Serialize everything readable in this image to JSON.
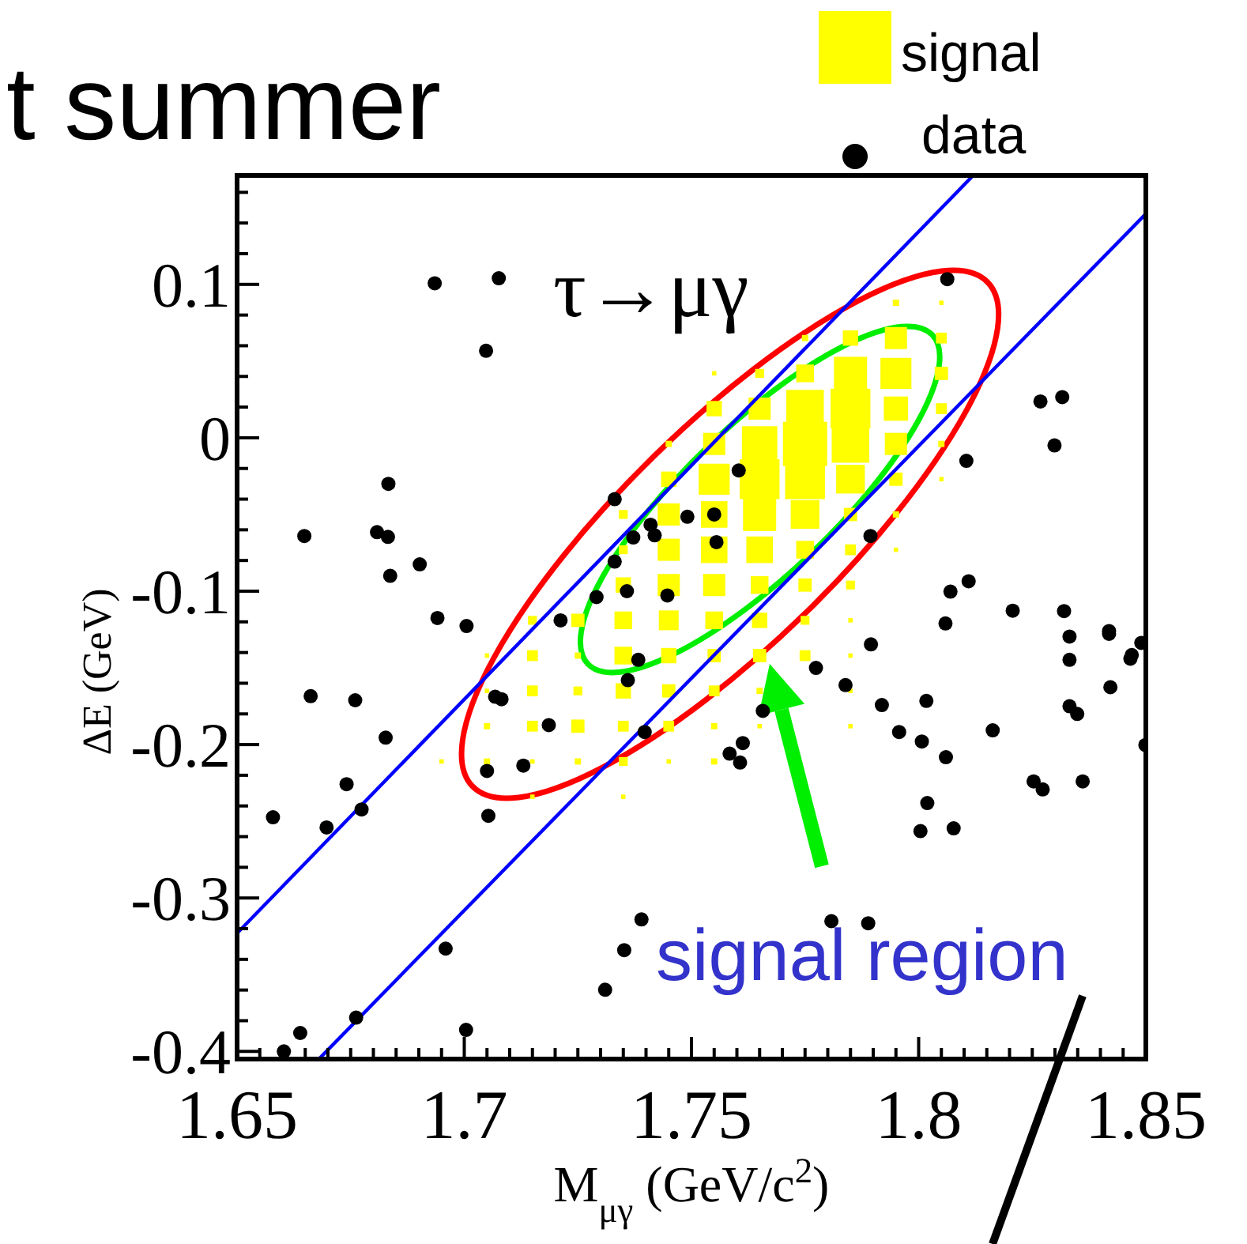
{
  "chart_data": {
    "type": "scatter",
    "title": "t summer",
    "xlabel": "M$_{μγ}$ (GeV/c$^{2}$)",
    "ylabel": "ΔE (GeV)",
    "annotations": [
      "τ→μγ",
      "signal region"
    ],
    "xlim": [
      1.65,
      1.85
    ],
    "ylim": [
      -0.405,
      0.171
    ],
    "xticks": [
      1.65,
      {
        "value": 1.655,
        "label": null
      },
      {
        "value": 1.66,
        "label": null
      },
      {
        "value": 1.665,
        "label": null
      },
      {
        "value": 1.67,
        "label": null
      },
      {
        "value": 1.675,
        "label": null
      },
      {
        "value": 1.68,
        "label": null
      },
      {
        "value": 1.685,
        "label": null
      },
      {
        "value": 1.69,
        "label": null
      },
      {
        "value": 1.695,
        "label": null
      },
      1.7,
      {
        "value": 1.705,
        "label": null
      },
      {
        "value": 1.71,
        "label": null
      },
      {
        "value": 1.715,
        "label": null
      },
      {
        "value": 1.72,
        "label": null
      },
      {
        "value": 1.725,
        "label": null
      },
      {
        "value": 1.73,
        "label": null
      },
      {
        "value": 1.735,
        "label": null
      },
      {
        "value": 1.74,
        "label": null
      },
      {
        "value": 1.745,
        "label": null
      },
      1.75,
      {
        "value": 1.755,
        "label": null
      },
      {
        "value": 1.76,
        "label": null
      },
      {
        "value": 1.765,
        "label": null
      },
      {
        "value": 1.77,
        "label": null
      },
      {
        "value": 1.775,
        "label": null
      },
      {
        "value": 1.78,
        "label": null
      },
      {
        "value": 1.785,
        "label": null
      },
      {
        "value": 1.79,
        "label": null
      },
      {
        "value": 1.795,
        "label": null
      },
      1.8,
      {
        "value": 1.805,
        "label": null
      },
      {
        "value": 1.81,
        "label": null
      },
      {
        "value": 1.815,
        "label": null
      },
      {
        "value": 1.82,
        "label": null
      },
      {
        "value": 1.825,
        "label": null
      },
      {
        "value": 1.83,
        "label": null
      },
      {
        "value": 1.835,
        "label": null
      },
      {
        "value": 1.84,
        "label": null
      },
      {
        "value": 1.845,
        "label": null
      },
      1.85
    ],
    "yticks": [
      -0.4,
      {
        "value": -0.38,
        "label": null
      },
      {
        "value": -0.36,
        "label": null
      },
      {
        "value": -0.34,
        "label": null
      },
      {
        "value": -0.32,
        "label": null
      },
      -0.3,
      {
        "value": -0.28,
        "label": null
      },
      {
        "value": -0.26,
        "label": null
      },
      {
        "value": -0.24,
        "label": null
      },
      {
        "value": -0.22,
        "label": null
      },
      -0.2,
      {
        "value": -0.18,
        "label": null
      },
      {
        "value": -0.16,
        "label": null
      },
      {
        "value": -0.14,
        "label": null
      },
      {
        "value": -0.12,
        "label": null
      },
      -0.1,
      {
        "value": -0.08,
        "label": null
      },
      {
        "value": -0.06,
        "label": null
      },
      {
        "value": -0.04,
        "label": null
      },
      {
        "value": -0.02,
        "label": null
      },
      0,
      {
        "value": 0.02,
        "label": null
      },
      {
        "value": 0.04,
        "label": null
      },
      {
        "value": 0.06,
        "label": null
      },
      {
        "value": 0.08,
        "label": null
      },
      0.1,
      {
        "value": 0.12,
        "label": null
      },
      {
        "value": 0.14,
        "label": null
      },
      {
        "value": 0.16,
        "label": null
      }
    ],
    "grid": false,
    "legend": "top right",
    "series": [
      {
        "name": "signal",
        "type": "bubble",
        "marker": "square",
        "color": "#ffff00",
        "x": [
          1.795,
          1.805,
          1.775,
          1.785,
          1.795,
          1.805,
          1.755,
          1.765,
          1.775,
          1.785,
          1.795,
          1.805,
          1.755,
          1.765,
          1.775,
          1.785,
          1.795,
          1.805,
          1.745,
          1.755,
          1.765,
          1.775,
          1.785,
          1.795,
          1.805,
          1.745,
          1.755,
          1.765,
          1.775,
          1.785,
          1.795,
          1.805,
          1.735,
          1.745,
          1.755,
          1.765,
          1.775,
          1.785,
          1.795,
          1.735,
          1.745,
          1.755,
          1.765,
          1.775,
          1.785,
          1.795,
          1.735,
          1.745,
          1.755,
          1.765,
          1.775,
          1.785,
          1.715,
          1.725,
          1.735,
          1.745,
          1.755,
          1.765,
          1.775,
          1.785,
          1.705,
          1.715,
          1.725,
          1.735,
          1.745,
          1.755,
          1.765,
          1.775,
          1.785,
          1.705,
          1.715,
          1.725,
          1.735,
          1.745,
          1.755,
          1.765,
          1.785,
          1.705,
          1.715,
          1.725,
          1.735,
          1.745,
          1.755,
          1.765,
          1.785,
          1.695,
          1.705,
          1.715,
          1.725,
          1.735,
          1.745,
          1.755,
          1.715,
          1.735
        ],
        "values": [
          0.088,
          0.088,
          0.065,
          0.065,
          0.065,
          0.065,
          0.042,
          0.042,
          0.042,
          0.042,
          0.042,
          0.042,
          0.019,
          0.019,
          0.019,
          0.019,
          0.019,
          0.019,
          -0.004,
          -0.004,
          -0.004,
          -0.004,
          -0.004,
          -0.004,
          -0.004,
          -0.027,
          -0.027,
          -0.027,
          -0.027,
          -0.027,
          -0.027,
          -0.027,
          -0.05,
          -0.05,
          -0.05,
          -0.05,
          -0.05,
          -0.05,
          -0.05,
          -0.073,
          -0.073,
          -0.073,
          -0.073,
          -0.073,
          -0.073,
          -0.073,
          -0.096,
          -0.096,
          -0.096,
          -0.096,
          -0.096,
          -0.096,
          -0.119,
          -0.119,
          -0.119,
          -0.119,
          -0.119,
          -0.119,
          -0.119,
          -0.119,
          -0.142,
          -0.142,
          -0.142,
          -0.142,
          -0.142,
          -0.142,
          -0.142,
          -0.142,
          -0.142,
          -0.165,
          -0.165,
          -0.165,
          -0.165,
          -0.165,
          -0.165,
          -0.165,
          -0.165,
          -0.188,
          -0.188,
          -0.188,
          -0.188,
          -0.188,
          -0.188,
          -0.188,
          -0.188,
          -0.211,
          -0.211,
          -0.211,
          -0.211,
          -0.211,
          -0.211,
          -0.211,
          -0.234,
          -0.234
        ],
        "sizes": [
          0.02,
          0.01,
          0.02,
          0.12,
          0.25,
          0.06,
          0.01,
          0.04,
          0.16,
          0.56,
          0.49,
          0.09,
          0.12,
          0.25,
          0.72,
          0.81,
          0.3,
          0.06,
          0.02,
          0.25,
          0.64,
          1,
          0.72,
          0.25,
          0.02,
          0.12,
          0.49,
          0.81,
          0.81,
          0.42,
          0.09,
          0.01,
          0.04,
          0.25,
          0.36,
          0.56,
          0.42,
          0.09,
          0.02,
          0.04,
          0.25,
          0.36,
          0.36,
          0.16,
          0.06,
          0.01,
          0.12,
          0.25,
          0.25,
          0.16,
          0.09,
          0.04,
          0.04,
          0.09,
          0.16,
          0.2,
          0.16,
          0.12,
          0.04,
          0.01,
          0.01,
          0.06,
          0.02,
          0.16,
          0.12,
          0.09,
          0.09,
          0.06,
          0.01,
          0.01,
          0.06,
          0.04,
          0.12,
          0.09,
          0.06,
          0.02,
          0.01,
          0.02,
          0.06,
          0.09,
          0.06,
          0.06,
          0.02,
          0.01,
          0.01,
          0.01,
          0.02,
          0.01,
          0.02,
          0.04,
          0.01,
          0.02,
          0.01,
          0.01
        ]
      },
      {
        "type": "line",
        "color": "#0000ff",
        "x": [
          1.65,
          1.812
        ],
        "values": [
          -0.323,
          0.171
        ]
      },
      {
        "type": "line",
        "color": "#0000ff",
        "x": [
          1.668,
          1.85
        ],
        "values": [
          -0.405,
          0.146
        ]
      },
      {
        "name": "data",
        "marker": "circle",
        "color": "#000000",
        "x": [
          1.6935,
          1.7076,
          1.7048,
          1.6833,
          1.6648,
          1.6808,
          1.6832,
          1.6902,
          1.6837,
          1.6941,
          1.7005,
          1.7212,
          1.7331,
          1.741,
          1.7372,
          1.7419,
          1.7331,
          1.7291,
          1.7358,
          1.7447,
          1.7491,
          1.755,
          1.7555,
          1.7604,
          1.8063,
          1.8268,
          1.8316,
          1.8299,
          1.8105,
          1.7894,
          1.811,
          1.807,
          1.8207,
          1.832,
          1.8419,
          1.8059,
          1.7383,
          1.736,
          1.7068,
          1.7082,
          1.6662,
          1.676,
          1.6827,
          1.7186,
          1.7397,
          1.713,
          1.705,
          1.6741,
          1.6774,
          1.6579,
          1.6697,
          1.7053,
          1.7584,
          1.7613,
          1.7607,
          1.739,
          1.7352,
          1.731,
          1.6959,
          1.6762,
          1.6639,
          1.6603,
          1.7004,
          1.7774,
          1.7657,
          1.7839,
          1.7895,
          1.8332,
          1.8332,
          1.8419,
          1.849,
          1.8469,
          1.8466,
          1.8422,
          1.7919,
          1.8017,
          1.7957,
          1.8007,
          1.806,
          1.8163,
          1.8332,
          1.8349,
          1.8499,
          1.8253,
          1.8273,
          1.8361,
          1.8019,
          1.8004,
          1.8077,
          1.7808,
          1.7889
        ],
        "values": [
          0.1007,
          0.104,
          0.0567,
          -0.03,
          -0.064,
          -0.0615,
          -0.0646,
          -0.0825,
          -0.09,
          -0.1175,
          -0.1227,
          -0.119,
          -0.04,
          -0.0567,
          -0.065,
          -0.0636,
          -0.0807,
          -0.1038,
          -0.1,
          -0.1028,
          -0.0515,
          -0.05,
          -0.068,
          -0.0213,
          0.1034,
          0.0237,
          0.0265,
          -0.005,
          -0.015,
          -0.064,
          -0.0935,
          -0.1003,
          -0.1127,
          -0.113,
          -0.126,
          -0.121,
          -0.1447,
          -0.158,
          -0.1688,
          -0.1704,
          -0.1684,
          -0.1711,
          -0.1955,
          -0.1873,
          -0.1918,
          -0.2137,
          -0.2172,
          -0.2258,
          -0.2423,
          -0.2474,
          -0.254,
          -0.2464,
          -0.2059,
          -0.199,
          -0.2117,
          -0.314,
          -0.334,
          -0.3598,
          -0.333,
          -0.378,
          -0.388,
          -0.4,
          -0.386,
          -0.15,
          -0.178,
          -0.1612,
          -0.1347,
          -0.1296,
          -0.1447,
          -0.1278,
          -0.1337,
          -0.1416,
          -0.144,
          -0.1626,
          -0.1742,
          -0.1715,
          -0.1918,
          -0.198,
          -0.2082,
          -0.1907,
          -0.175,
          -0.18,
          -0.2003,
          -0.224,
          -0.2292,
          -0.224,
          -0.2381,
          -0.2564,
          -0.2546,
          -0.3151,
          -0.3165
        ]
      }
    ]
  }
}
